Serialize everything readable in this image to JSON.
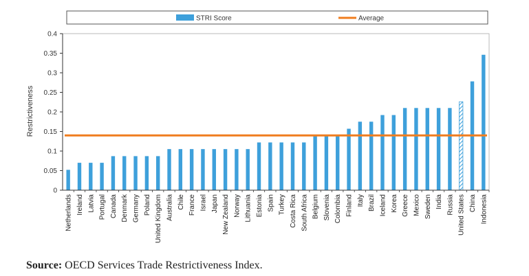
{
  "chart_data": {
    "type": "bar",
    "ylabel": "Restrictiveness",
    "ylim": [
      0,
      0.4
    ],
    "yticks": [
      "0",
      "0.05",
      "0.1",
      "0.15",
      "0.2",
      "0.25",
      "0.3",
      "0.35",
      "0.4"
    ],
    "categories": [
      "Netherlands",
      "Ireland",
      "Latvia",
      "Portugal",
      "Canada",
      "Denmark",
      "Germany",
      "Poland",
      "United Kingdom",
      "Australia",
      "Chile",
      "France",
      "Israel",
      "Japan",
      "New Zealand",
      "Norway",
      "Lithuania",
      "Estonia",
      "Spain",
      "Turkey",
      "Costa Rica",
      "South Africa",
      "Belgium",
      "Slovenia",
      "Colombia",
      "Finland",
      "Italy",
      "Brazil",
      "Iceland",
      "Korea",
      "Greece",
      "Mexico",
      "Sweden",
      "India",
      "Russia",
      "United States",
      "China",
      "Indonesia"
    ],
    "series": [
      {
        "name": "STRI Score",
        "values": [
          0.052,
          0.07,
          0.07,
          0.07,
          0.087,
          0.087,
          0.087,
          0.087,
          0.087,
          0.105,
          0.105,
          0.105,
          0.105,
          0.105,
          0.105,
          0.105,
          0.105,
          0.122,
          0.122,
          0.122,
          0.122,
          0.122,
          0.14,
          0.14,
          0.14,
          0.157,
          0.175,
          0.175,
          0.192,
          0.192,
          0.21,
          0.21,
          0.21,
          0.21,
          0.21,
          0.226,
          0.278,
          0.346
        ],
        "color": "#3ea0db",
        "highlight_hatched": "United States"
      },
      {
        "name": "Average",
        "value": 0.14,
        "color": "#f07d1e"
      }
    ],
    "legend": "top"
  },
  "source": {
    "label": "Source:",
    "text": " OECD Services Trade Restrictiveness Index."
  }
}
